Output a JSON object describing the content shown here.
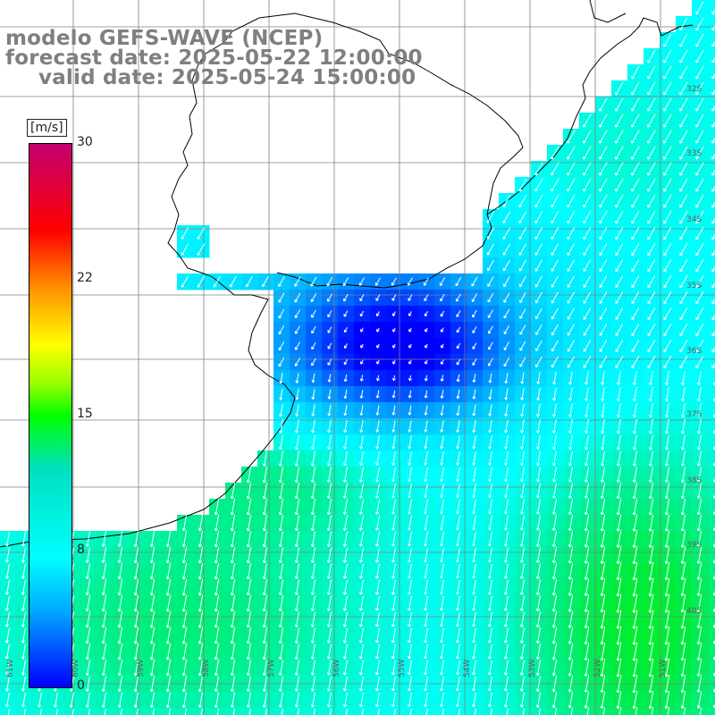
{
  "title": {
    "line1": "modelo GEFS-WAVE (NCEP)",
    "line2": "forecast date: 2025-05-22 12:00:00",
    "line3": "valid date: 2025-05-24 15:00:00"
  },
  "colorbar": {
    "unit": "[m/s]",
    "ticks": [
      "30",
      "22",
      "15",
      "8",
      "0"
    ],
    "tick_values": [
      30,
      22,
      15,
      8,
      0
    ],
    "colors": [
      "#c4006e",
      "#ff0000",
      "#ff8a00",
      "#ffff00",
      "#00ff00",
      "#00ffff",
      "#00a8ff",
      "#0000ff"
    ]
  },
  "map": {
    "lat_labels": [
      "32S",
      "33S",
      "34S",
      "35S",
      "36S",
      "37S",
      "38S",
      "39S",
      "40S"
    ],
    "lon_labels": [
      "61W",
      "60W",
      "59W",
      "58W",
      "57W",
      "56W",
      "55W",
      "54W",
      "53W",
      "52W",
      "51W"
    ],
    "land_color": "#ffffff",
    "grid_color": "#808080",
    "arrow_color": "#ffffff",
    "wind_direction": "from north-east, arrows pointing south-west"
  }
}
